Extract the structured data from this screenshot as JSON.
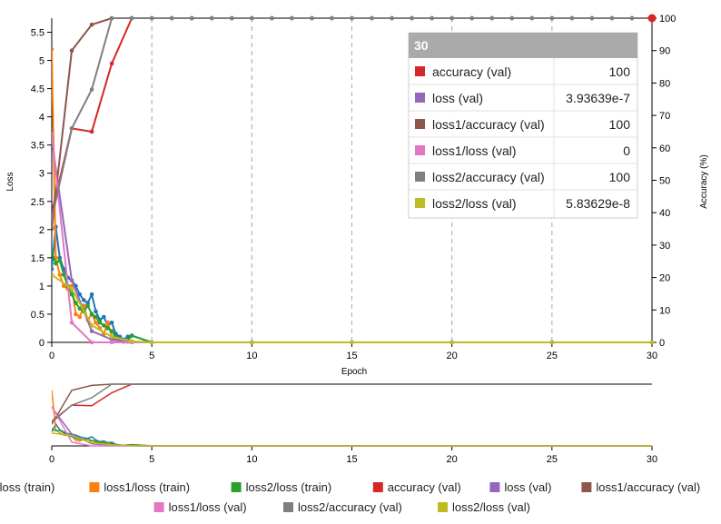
{
  "chart_data": [
    {
      "type": "line",
      "x_label": "Epoch",
      "y_left_label": "Loss",
      "y_right_label": "Accuracy (%)",
      "xlim": [
        0,
        30
      ],
      "y_left_lim": [
        0,
        5.75
      ],
      "y_right_lim": [
        0,
        100
      ],
      "x_ticks": [
        0,
        5,
        10,
        15,
        20,
        25,
        30
      ],
      "y_left_ticks": [
        0,
        0.5,
        1,
        1.5,
        2,
        2.5,
        3,
        3.5,
        4,
        4.5,
        5,
        5.5
      ],
      "y_right_ticks": [
        0,
        10,
        20,
        30,
        40,
        50,
        60,
        70,
        80,
        90,
        100
      ],
      "vertical_gridlines": [
        5,
        10,
        15,
        20,
        25
      ],
      "series": [
        {
          "name": "loss (train)",
          "color": "#1f77b4",
          "axis": "left",
          "x": [
            0,
            0.2,
            0.4,
            0.6,
            0.8,
            1,
            1.2,
            1.4,
            1.6,
            1.8,
            2,
            2.2,
            2.4,
            2.6,
            2.8,
            3,
            3.2,
            3.4,
            3.6,
            3.8,
            4,
            5,
            10,
            15,
            20,
            25,
            30
          ],
          "y": [
            1.3,
            2.05,
            1.5,
            1.3,
            1.15,
            1.1,
            1.0,
            0.85,
            0.75,
            0.7,
            0.85,
            0.55,
            0.4,
            0.45,
            0.3,
            0.35,
            0.15,
            0.1,
            0.05,
            0.1,
            0.12,
            0.0,
            0.0,
            0.0,
            0.0,
            0.0,
            0.0
          ]
        },
        {
          "name": "loss1/loss (train)",
          "color": "#ff7f0e",
          "axis": "left",
          "x": [
            0,
            0.2,
            0.4,
            0.6,
            0.8,
            1,
            1.2,
            1.4,
            1.6,
            1.8,
            2,
            2.2,
            2.4,
            2.6,
            2.8,
            3,
            3.2,
            3.4,
            3.6,
            3.8,
            4,
            5,
            10,
            15,
            20,
            25,
            30
          ],
          "y": [
            5.2,
            1.5,
            1.2,
            1.0,
            0.95,
            1.0,
            0.5,
            0.45,
            0.65,
            0.4,
            0.5,
            0.35,
            0.25,
            0.15,
            0.35,
            0.1,
            0.05,
            0.02,
            0.01,
            0.01,
            0.0,
            0.0,
            0.0,
            0.0,
            0.0,
            0.0,
            0.0
          ]
        },
        {
          "name": "loss2/loss (train)",
          "color": "#2ca02c",
          "axis": "left",
          "x": [
            0,
            0.2,
            0.4,
            0.6,
            0.8,
            1,
            1.2,
            1.4,
            1.6,
            1.8,
            2,
            2.2,
            2.4,
            2.6,
            2.8,
            3,
            3.2,
            3.4,
            3.6,
            3.8,
            4,
            5,
            10,
            15,
            20,
            25,
            30
          ],
          "y": [
            1.6,
            1.4,
            1.45,
            1.2,
            1.0,
            0.85,
            0.7,
            0.6,
            0.55,
            0.65,
            0.5,
            0.45,
            0.35,
            0.3,
            0.25,
            0.2,
            0.1,
            0.06,
            0.04,
            0.03,
            0.12,
            0.0,
            0.0,
            0.0,
            0.0,
            0.0,
            0.0
          ]
        },
        {
          "name": "accuracy (val)",
          "color": "#d62728",
          "axis": "right",
          "x": [
            0,
            1,
            2,
            3,
            4,
            5,
            6,
            7,
            8,
            9,
            10,
            11,
            12,
            13,
            14,
            15,
            16,
            17,
            18,
            19,
            20,
            21,
            22,
            23,
            24,
            25,
            26,
            27,
            28,
            29,
            30
          ],
          "y": [
            40,
            66,
            65,
            86,
            100,
            100,
            100,
            100,
            100,
            100,
            100,
            100,
            100,
            100,
            100,
            100,
            100,
            100,
            100,
            100,
            100,
            100,
            100,
            100,
            100,
            100,
            100,
            100,
            100,
            100,
            100
          ]
        },
        {
          "name": "loss (val)",
          "color": "#9467bd",
          "axis": "left",
          "x": [
            0,
            1,
            2,
            3,
            4,
            5,
            10,
            15,
            20,
            25,
            30
          ],
          "y": [
            3.6,
            1.1,
            0.2,
            0.05,
            0.01,
            0.0,
            0.0,
            0.0,
            0.0,
            0.0,
            0.0
          ]
        },
        {
          "name": "loss1/accuracy (val)",
          "color": "#8c564b",
          "axis": "right",
          "x": [
            0,
            1,
            2,
            3,
            4,
            5,
            6,
            7,
            8,
            9,
            10,
            11,
            12,
            13,
            14,
            15,
            16,
            17,
            18,
            19,
            20,
            21,
            22,
            23,
            24,
            25,
            26,
            27,
            28,
            29,
            30
          ],
          "y": [
            35,
            90,
            98,
            100,
            100,
            100,
            100,
            100,
            100,
            100,
            100,
            100,
            100,
            100,
            100,
            100,
            100,
            100,
            100,
            100,
            100,
            100,
            100,
            100,
            100,
            100,
            100,
            100,
            100,
            100,
            100
          ]
        },
        {
          "name": "loss1/loss (val)",
          "color": "#e377c2",
          "axis": "left",
          "x": [
            0,
            1,
            2,
            3,
            4,
            5,
            10,
            15,
            20,
            25,
            30
          ],
          "y": [
            3.7,
            0.35,
            0.0,
            0.0,
            0.0,
            0.0,
            0.0,
            0.0,
            0.0,
            0.0,
            0.0
          ]
        },
        {
          "name": "loss2/accuracy (val)",
          "color": "#7f7f7f",
          "axis": "right",
          "x": [
            0,
            1,
            2,
            3,
            4,
            5,
            6,
            7,
            8,
            9,
            10,
            11,
            12,
            13,
            14,
            15,
            16,
            17,
            18,
            19,
            20,
            21,
            22,
            23,
            24,
            25,
            26,
            27,
            28,
            29,
            30
          ],
          "y": [
            38,
            66,
            78,
            100,
            100,
            100,
            100,
            100,
            100,
            100,
            100,
            100,
            100,
            100,
            100,
            100,
            100,
            100,
            100,
            100,
            100,
            100,
            100,
            100,
            100,
            100,
            100,
            100,
            100,
            100,
            100
          ]
        },
        {
          "name": "loss2/loss (val)",
          "color": "#bcbd22",
          "axis": "left",
          "x": [
            0,
            1,
            2,
            3,
            4,
            5,
            10,
            15,
            20,
            25,
            30
          ],
          "y": [
            1.2,
            0.95,
            0.3,
            0.1,
            0.02,
            0.0,
            0.0,
            0.0,
            0.0,
            0.0,
            0.0
          ]
        }
      ],
      "tooltip": {
        "title": "30",
        "rows": [
          {
            "label": "accuracy (val)",
            "value": "100",
            "color": "#d62728"
          },
          {
            "label": "loss (val)",
            "value": "3.93639e-7",
            "color": "#9467bd"
          },
          {
            "label": "loss1/accuracy (val)",
            "value": "100",
            "color": "#8c564b"
          },
          {
            "label": "loss1/loss (val)",
            "value": "0",
            "color": "#e377c2"
          },
          {
            "label": "loss2/accuracy (val)",
            "value": "100",
            "color": "#7f7f7f"
          },
          {
            "label": "loss2/loss (val)",
            "value": "5.83629e-8",
            "color": "#bcbd22"
          }
        ]
      },
      "legend_placement": "bottom"
    },
    {
      "type": "line",
      "role": "overview",
      "xlim": [
        0,
        30
      ],
      "x_ticks": [
        0,
        5,
        10,
        15,
        20,
        25,
        30
      ]
    }
  ]
}
